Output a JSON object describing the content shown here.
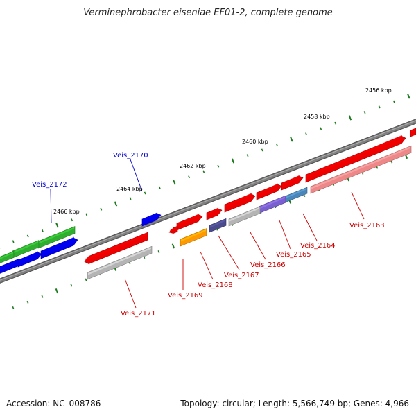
{
  "title": "Verminephrobacter eiseniae EF01-2, complete genome",
  "footer": {
    "accession": "Accession: NC_008786",
    "summary": "Topology: circular; Length: 5,566,749 bp; Genes: 4,966"
  },
  "colors": {
    "forward_label": "#cc0000",
    "reverse_label": "#0000cc",
    "backbone": "#808080",
    "tick": "#1e7a1e",
    "cds": "#ee0000",
    "gene_grey": "#b4b4b4",
    "pink": "#ee8888",
    "orange": "#ff9900",
    "navy": "#4a4a8c",
    "violet": "#7a5fd0",
    "steel": "#4a86b8",
    "blue": "#0000ee",
    "green": "#2fae2f",
    "light_green": "#7fd97f"
  },
  "scale": {
    "kbp_labels": [
      "2456 kbp",
      "2458 kbp",
      "2460 kbp",
      "2462 kbp",
      "2464 kbp",
      "2466 kbp"
    ]
  },
  "gene_labels": [
    {
      "text": "Veis_2163",
      "strand": "forward"
    },
    {
      "text": "Veis_2164",
      "strand": "forward"
    },
    {
      "text": "Veis_2165",
      "strand": "forward"
    },
    {
      "text": "Veis_2166",
      "strand": "forward"
    },
    {
      "text": "Veis_2167",
      "strand": "forward"
    },
    {
      "text": "Veis_2168",
      "strand": "forward"
    },
    {
      "text": "Veis_2169",
      "strand": "forward"
    },
    {
      "text": "Veis_2171",
      "strand": "forward"
    },
    {
      "text": "Veis_2170",
      "strand": "reverse"
    },
    {
      "text": "Veis_2172",
      "strand": "reverse"
    }
  ]
}
